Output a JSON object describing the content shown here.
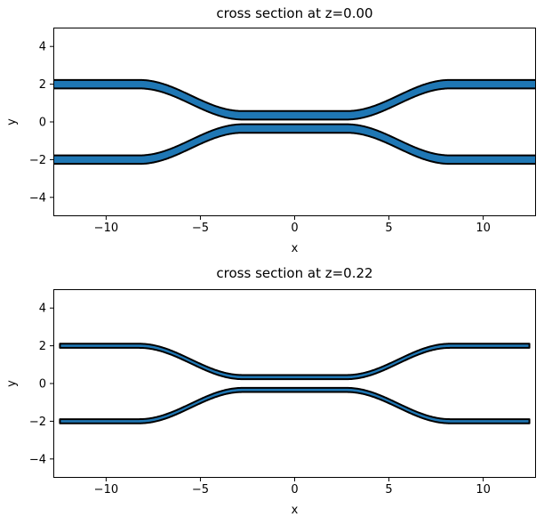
{
  "figure": {
    "background": "#ffffff",
    "text_color": "#000000"
  },
  "chart_data": [
    {
      "type": "area",
      "title": "cross section at z=0.00",
      "xlabel": "x",
      "ylabel": "y",
      "xlim": [
        -12.8,
        12.8
      ],
      "ylim": [
        -5,
        5
      ],
      "grid": false,
      "legend": "none",
      "xticks": [
        {
          "v": -10,
          "label": "−10"
        },
        {
          "v": -5,
          "label": "−5"
        },
        {
          "v": 0,
          "label": "0"
        },
        {
          "v": 5,
          "label": "5"
        },
        {
          "v": 10,
          "label": "10"
        }
      ],
      "yticks": [
        {
          "v": 4,
          "label": "4"
        },
        {
          "v": 2,
          "label": "2"
        },
        {
          "v": 0,
          "label": "0"
        },
        {
          "v": -2,
          "label": "−2"
        },
        {
          "v": -4,
          "label": "−4"
        }
      ],
      "geometry": {
        "description": "two mirrored S-bend waveguides of a directional coupler",
        "waveguide_width": 0.45,
        "y_edge": 2.0,
        "y_center": 0.35,
        "bend_x_start": 2.75,
        "bend_x_end": 8.25,
        "x_extent": 12.8,
        "end_caps_visible": false,
        "fill": "#1f77b4",
        "stroke": "#000000",
        "stroke_width": 2
      }
    },
    {
      "type": "area",
      "title": "cross section at z=0.22",
      "xlabel": "x",
      "ylabel": "y",
      "xlim": [
        -12.8,
        12.8
      ],
      "ylim": [
        -5,
        5
      ],
      "grid": false,
      "legend": "none",
      "xticks": [
        {
          "v": -10,
          "label": "−10"
        },
        {
          "v": -5,
          "label": "−5"
        },
        {
          "v": 0,
          "label": "0"
        },
        {
          "v": 5,
          "label": "5"
        },
        {
          "v": 10,
          "label": "10"
        }
      ],
      "yticks": [
        {
          "v": 4,
          "label": "4"
        },
        {
          "v": 2,
          "label": "2"
        },
        {
          "v": 0,
          "label": "0"
        },
        {
          "v": -2,
          "label": "−2"
        },
        {
          "v": -4,
          "label": "−4"
        }
      ],
      "geometry": {
        "description": "two mirrored S-bend waveguides of a directional coupler, thinner cross section",
        "waveguide_width": 0.22,
        "y_edge": 2.0,
        "y_center": 0.34,
        "bend_x_start": 2.75,
        "bend_x_end": 8.25,
        "x_extent": 12.45,
        "end_caps_visible": true,
        "fill": "#1f77b4",
        "stroke": "#000000",
        "stroke_width": 2
      }
    }
  ]
}
